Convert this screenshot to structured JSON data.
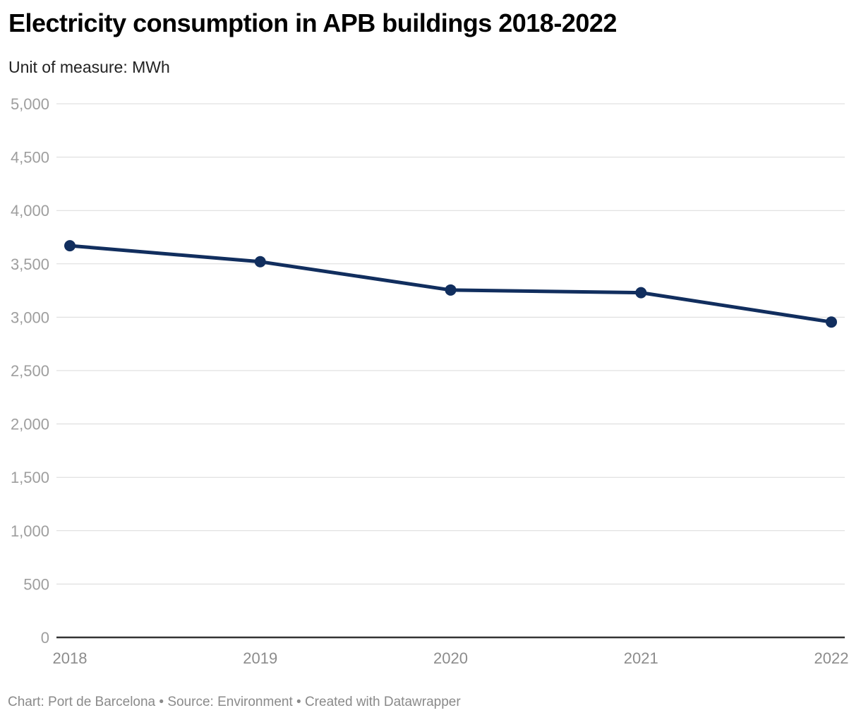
{
  "header": {
    "title": "Electricity consumption in APB buildings 2018-2022",
    "subtitle": "Unit of measure: MWh"
  },
  "footer": {
    "text": "Chart: Port de Barcelona • Source: Environment • Created with Datawrapper"
  },
  "chart_data": {
    "type": "line",
    "title": "Electricity consumption in APB buildings 2018-2022",
    "unit": "MWh",
    "categories": [
      "2018",
      "2019",
      "2020",
      "2021",
      "2022"
    ],
    "series": [
      {
        "name": "Electricity consumption (MWh)",
        "values": [
          3670,
          3520,
          3255,
          3230,
          2955
        ]
      }
    ],
    "ylim": [
      0,
      5000
    ],
    "yticks": [
      0,
      500,
      1000,
      1500,
      2000,
      2500,
      3000,
      3500,
      4000,
      4500,
      5000
    ],
    "grid": "horizontal",
    "legend": "none",
    "colors": {
      "line": "#112e5e",
      "point": "#112e5e",
      "gridline": "#dadada",
      "baseline": "#333333",
      "y_label": "#9e9e9e",
      "x_label": "#8c8c8c"
    }
  }
}
